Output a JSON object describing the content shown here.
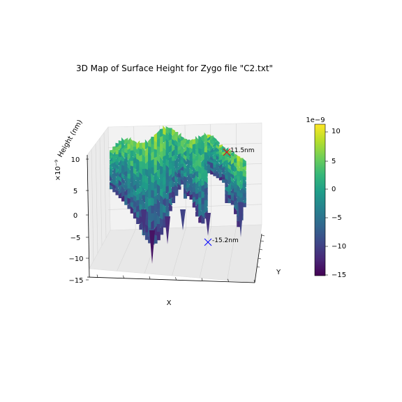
{
  "chart_data": {
    "type": "surface3d",
    "title": "3D Map of Surface Height for Zygo file \"C2.txt\"",
    "xlabel": "X",
    "ylabel": "Y",
    "zlabel": "Height (nm)",
    "z_offset_text": "×10⁻⁹",
    "zticks": [
      "10",
      "5",
      "0",
      "−5",
      "−10",
      "−15"
    ],
    "zlim": [
      -15,
      12
    ],
    "colormap": "viridis",
    "colorbar": {
      "offset_text": "1e−9",
      "ticks": [
        "10",
        "5",
        "0",
        "−5",
        "−10",
        "−15"
      ],
      "range": [
        -15.2,
        11.5
      ]
    },
    "markers": [
      {
        "label": "11.5nm",
        "value_nm": 11.5,
        "color": "#ff0000",
        "kind": "max"
      },
      {
        "label": "-15.2nm",
        "value_nm": -15.2,
        "color": "#0000ff",
        "kind": "min"
      }
    ],
    "grid": true
  },
  "colors": {
    "pane": "#f2f2f2",
    "grid": "#d9d9d9",
    "viridis": [
      "#440154",
      "#482878",
      "#3e4989",
      "#31688e",
      "#26828e",
      "#1f9e89",
      "#35b779",
      "#6ece58",
      "#b5de2b",
      "#fde725"
    ]
  }
}
